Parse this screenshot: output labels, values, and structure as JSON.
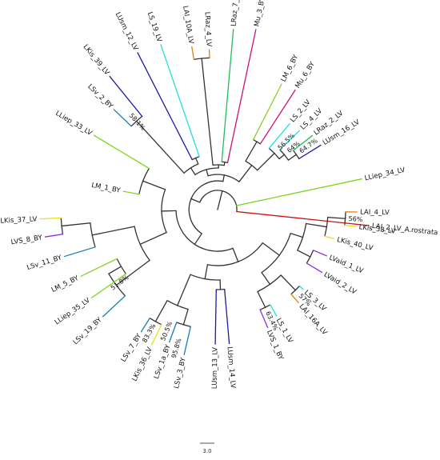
{
  "tree": {
    "taxa": [
      {
        "label": "LAI_2_LV_A.rostrata",
        "color": "#cc1111"
      },
      {
        "label": "LLiep_34_LV",
        "color": "#7ed321"
      },
      {
        "label": "LUsm_16_LV",
        "color": "#1a1aa8"
      },
      {
        "label": "LRaz_2_LV",
        "color": "#22bb55"
      },
      {
        "label": "LS_4_LV",
        "color": "#22dddd"
      },
      {
        "label": "LS_2_LV",
        "color": "#22dddd"
      },
      {
        "label": "Mu_6_BY",
        "color": "#cc1177"
      },
      {
        "label": "LM_6_BY",
        "color": "#8ccf2a"
      },
      {
        "label": "Mu_3_BY",
        "color": "#cc1177"
      },
      {
        "label": "LRaz_7_LV",
        "color": "#22bb55"
      },
      {
        "label": "LRaz_4_LV",
        "color": "#e0821a"
      },
      {
        "label": "LAI_10A_LV",
        "color": "#e0821a"
      },
      {
        "label": "LS_19_LV",
        "color": "#22dddd"
      },
      {
        "label": "LUsm_12_LV",
        "color": "#1a1aa8"
      },
      {
        "label": "LKis_39_LV",
        "color": "#1a1aa8"
      },
      {
        "label": "LSv_2_BY",
        "color": "#1a7fb0"
      },
      {
        "label": "LLiep_33_LV",
        "color": "#7ed321"
      },
      {
        "label": "LM_1_BY",
        "color": "#8ccf2a"
      },
      {
        "label": "LKis_37_LV",
        "color": "#e8e020"
      },
      {
        "label": "LVS_8_BY",
        "color": "#8a2be2"
      },
      {
        "label": "LSv_11_BY",
        "color": "#1a7fb0"
      },
      {
        "label": "LM_5_BY",
        "color": "#8ccf2a"
      },
      {
        "label": "LLiep_35_LV",
        "color": "#7ed321"
      },
      {
        "label": "LSv_19_BY",
        "color": "#1a7fb0"
      },
      {
        "label": "LSv_7_BY",
        "color": "#1a7fb0"
      },
      {
        "label": "LKis_36_LV",
        "color": "#e8e020"
      },
      {
        "label": "LSv_1a_BY",
        "color": "#1a7fb0"
      },
      {
        "label": "LSv_3_BY",
        "color": "#1a7fb0"
      },
      {
        "label": "LUsm_13_LV",
        "color": "#1a1aa8"
      },
      {
        "label": "LUsm_14_LV",
        "color": "#1a1aa8"
      },
      {
        "label": "LVS_1_BY",
        "color": "#8a2be2"
      },
      {
        "label": "LS_1_LV",
        "color": "#22dddd"
      },
      {
        "label": "LAI_16A_LV",
        "color": "#e0821a"
      },
      {
        "label": "LS_3_LV",
        "color": "#22dddd"
      },
      {
        "label": "LVaid_2_LV",
        "color": "#8a2be2"
      },
      {
        "label": "LVaid_1_LV",
        "color": "#8a2be2"
      },
      {
        "label": "LKis_40_LV",
        "color": "#e8e020"
      },
      {
        "label": "LKis_38_LV",
        "color": "#e8e020"
      },
      {
        "label": "LAI_4_LV",
        "color": "#e0821a"
      }
    ],
    "bootstrap": [
      {
        "value": "56.5%"
      },
      {
        "value": "64%"
      },
      {
        "value": "64.7%"
      },
      {
        "value": "58.1%"
      },
      {
        "value": "56%"
      },
      {
        "value": "51.8%"
      },
      {
        "value": "83.3%"
      },
      {
        "value": "95.8%"
      },
      {
        "value": "50.5%"
      },
      {
        "value": "63.4%"
      },
      {
        "value": "57%"
      }
    ],
    "scale_bar": {
      "label": "3.0"
    }
  }
}
